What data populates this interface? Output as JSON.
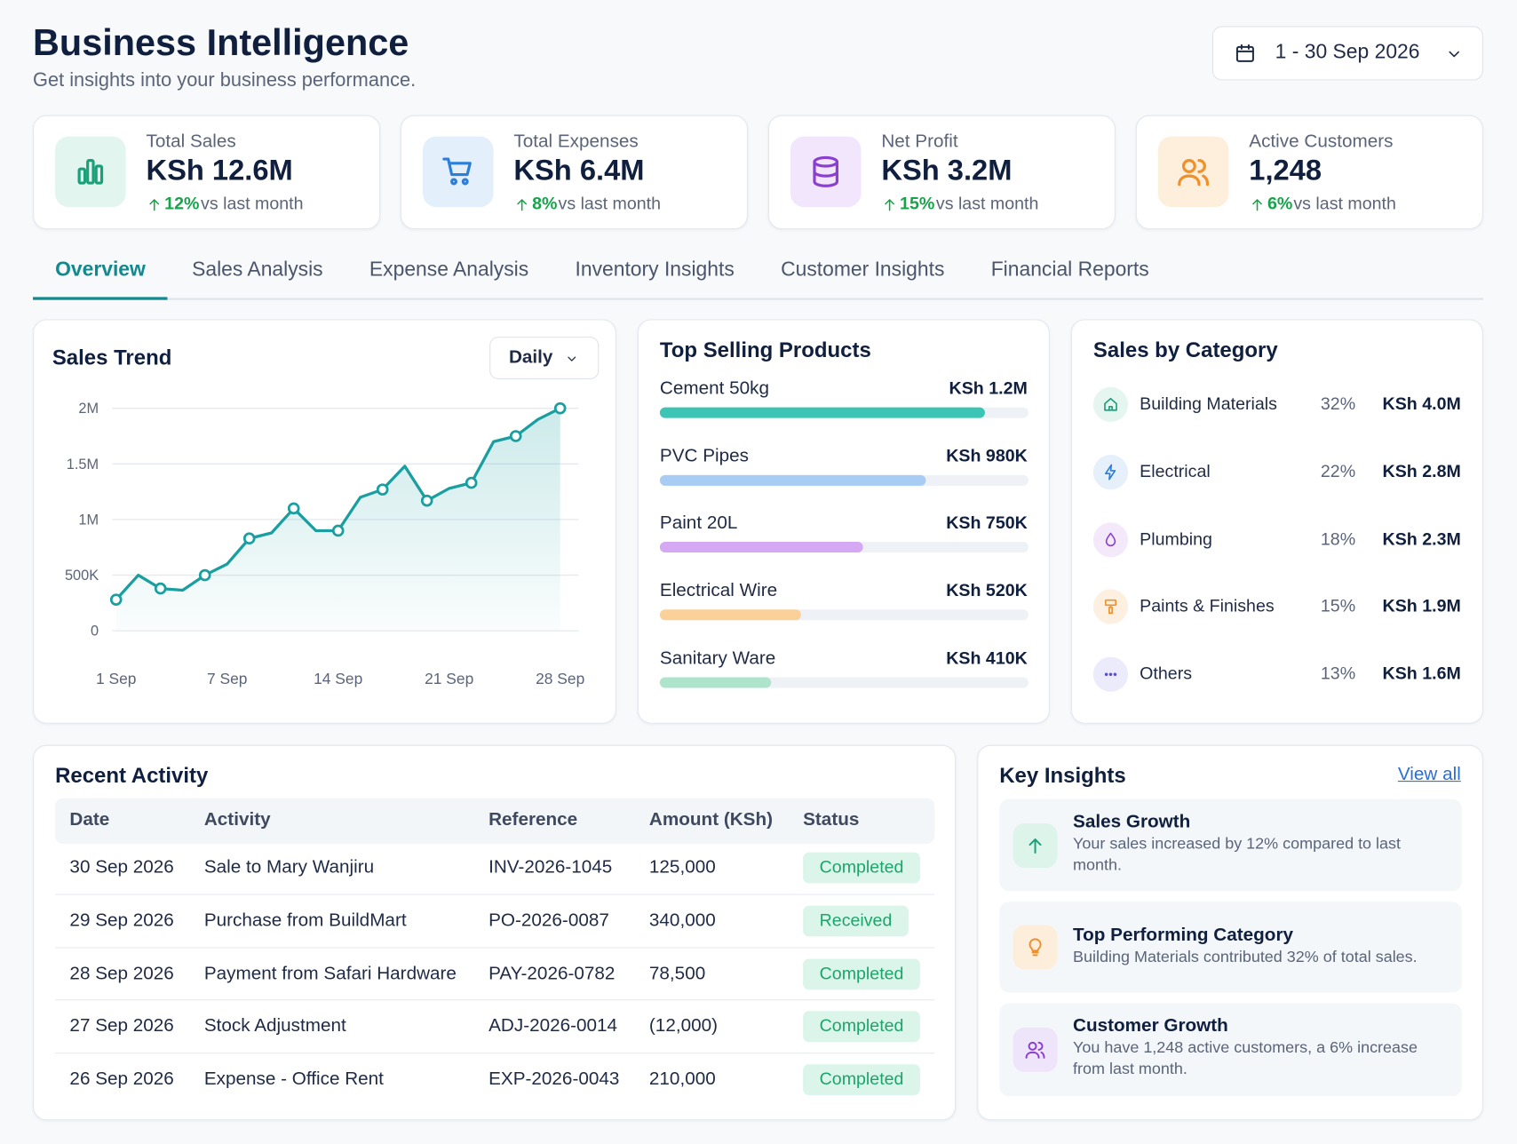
{
  "header": {
    "title": "Business Intelligence",
    "subtitle": "Get insights into your business performance.",
    "date_range": "1 - 30 Sep 2026"
  },
  "kpis": [
    {
      "label": "Total Sales",
      "value": "KSh 12.6M",
      "change": "12%",
      "comparison": "vs last month"
    },
    {
      "label": "Total Expenses",
      "value": "KSh 6.4M",
      "change": "8%",
      "comparison": "vs last month"
    },
    {
      "label": "Net Profit",
      "value": "KSh 3.2M",
      "change": "15%",
      "comparison": "vs last month"
    },
    {
      "label": "Active Customers",
      "value": "1,248",
      "change": "6%",
      "comparison": "vs last month"
    }
  ],
  "tabs": [
    "Overview",
    "Sales Analysis",
    "Expense Analysis",
    "Inventory Insights",
    "Customer Insights",
    "Financial Reports"
  ],
  "chart_data": {
    "type": "line",
    "title": "Sales Trend",
    "period": "Daily",
    "categories": [
      "1 Sep",
      null,
      null,
      null,
      null,
      "7 Sep",
      null,
      null,
      null,
      null,
      "14 Sep",
      null,
      null,
      null,
      null,
      "21 Sep",
      null,
      null,
      null,
      null,
      "28 Sep"
    ],
    "values": [
      280000,
      500000,
      380000,
      365000,
      500000,
      600000,
      830000,
      880000,
      1100000,
      900000,
      900000,
      1200000,
      1270000,
      1480000,
      1170000,
      1280000,
      1330000,
      1700000,
      1750000,
      1900000,
      2000000
    ],
    "ylim": [
      0,
      2000000
    ],
    "yticks": [
      0,
      {
        "value": 500000,
        "label": "500K"
      },
      {
        "value": 1000000,
        "label": "1M"
      },
      {
        "value": 1500000,
        "label": "1.5M"
      },
      {
        "value": 2000000,
        "label": "2M"
      }
    ],
    "color": "#1a9ea0",
    "grid": true
  },
  "top_products": {
    "title": "Top Selling Products",
    "categories": [
      "Cement 50kg",
      "PVC Pipes",
      "Paint 20L",
      "Electrical Wire",
      "Sanitary Ware"
    ],
    "values": [
      1200000,
      980000,
      750000,
      520000,
      410000
    ],
    "value_labels": [
      "KSh 1.2M",
      "KSh 980K",
      "KSh 750K",
      "KSh 520K",
      "KSh 410K"
    ],
    "xlim": [
      0,
      1360000
    ],
    "colors": [
      "#3cc5b5",
      "#a7cdf5",
      "#d4a8f2",
      "#fbd199",
      "#aee3cc"
    ]
  },
  "sales_by_category": {
    "title": "Sales by Category",
    "items": [
      {
        "name": "Building Materials",
        "share": "32%",
        "amount": "KSh 4.0M"
      },
      {
        "name": "Electrical",
        "share": "22%",
        "amount": "KSh 2.8M"
      },
      {
        "name": "Plumbing",
        "share": "18%",
        "amount": "KSh 2.3M"
      },
      {
        "name": "Paints & Finishes",
        "share": "15%",
        "amount": "KSh 1.9M"
      },
      {
        "name": "Others",
        "share": "13%",
        "amount": "KSh 1.6M"
      }
    ]
  },
  "recent_activity": {
    "title": "Recent Activity",
    "columns": [
      "Date",
      "Activity",
      "Reference",
      "Amount (KSh)",
      "Status"
    ],
    "rows": [
      [
        "30 Sep 2026",
        "Sale to Mary Wanjiru",
        "INV-2026-1045",
        "125,000",
        "Completed"
      ],
      [
        "29 Sep 2026",
        "Purchase from BuildMart",
        "PO-2026-0087",
        "340,000",
        "Received"
      ],
      [
        "28 Sep 2026",
        "Payment from Safari Hardware",
        "PAY-2026-0782",
        "78,500",
        "Completed"
      ],
      [
        "27 Sep 2026",
        "Stock Adjustment",
        "ADJ-2026-0014",
        "(12,000)",
        "Completed"
      ],
      [
        "26 Sep 2026",
        "Expense - Office Rent",
        "EXP-2026-0043",
        "210,000",
        "Completed"
      ]
    ]
  },
  "key_insights": {
    "title": "Key Insights",
    "link": "View all",
    "items": [
      {
        "title": "Sales Growth",
        "text": "Your sales increased by 12% compared to last month."
      },
      {
        "title": "Top Performing Category",
        "text": "Building Materials contributed 32% of total sales."
      },
      {
        "title": "Customer Growth",
        "text": "You have 1,248 active customers, a 6% increase from last month."
      }
    ]
  }
}
